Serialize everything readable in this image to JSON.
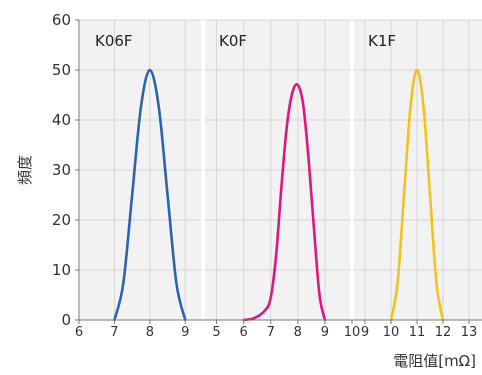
{
  "chart_data": {
    "type": "line",
    "title": "",
    "ylabel": "頻度",
    "xlabel": "電阻值[mΩ]",
    "ylim": [
      0,
      60
    ],
    "yticks": [
      0,
      10,
      20,
      30,
      40,
      50,
      60
    ],
    "grid": true,
    "panels": [
      {
        "label": "K06F",
        "xlim": [
          6,
          9.5
        ],
        "xticks": [
          6,
          7,
          8,
          9
        ],
        "color": "#2b63b3",
        "series": [
          {
            "x": [
              7,
              7.25,
              7.5,
              7.75,
              8,
              8.25,
              8.5,
              8.75,
              9
            ],
            "y": [
              0,
              7.3,
              25,
              42.7,
              50,
              42.7,
              25,
              7.3,
              0
            ]
          }
        ]
      },
      {
        "label": "K0F",
        "xlim": [
          4.5,
          10
        ],
        "xticks": [
          5,
          6,
          7,
          8,
          9,
          10
        ],
        "color": "#e0157e",
        "series": [
          {
            "x": [
              6,
              6.4,
              6.8,
              7,
              7.2,
              7.4,
              7.6,
              7.8,
              8,
              8.2,
              8.4,
              8.6,
              8.8,
              9
            ],
            "y": [
              0,
              0.4,
              2,
              4.5,
              13,
              27,
              39,
              45.5,
              47,
              43,
              32,
              18,
              5,
              0
            ]
          }
        ]
      },
      {
        "label": "K1F",
        "xlim": [
          8.5,
          13.5
        ],
        "xticks": [
          9,
          10,
          11,
          12,
          13
        ],
        "color": "#f3c21d",
        "series": [
          {
            "x": [
              10,
              10.25,
              10.5,
              10.75,
              11,
              11.25,
              11.5,
              11.75,
              12
            ],
            "y": [
              0,
              7.3,
              25,
              42.7,
              50,
              42.7,
              25,
              7.3,
              0
            ]
          }
        ]
      }
    ]
  }
}
